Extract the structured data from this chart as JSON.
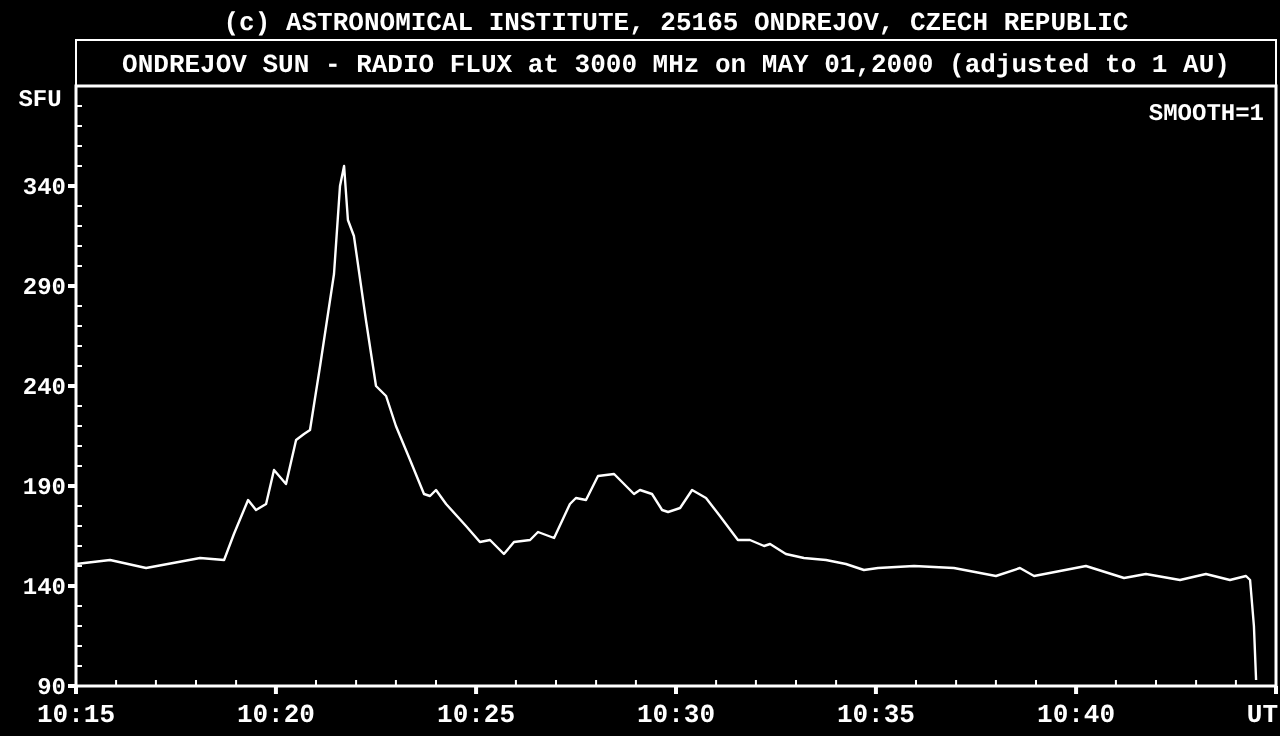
{
  "chart_data": {
    "type": "line",
    "title": "ONDREJOV SUN - RADIO FLUX at 3000 MHz on MAY 01,2000 (adjusted to 1 AU)",
    "ylabel": "SFU",
    "annotations": [
      "(c) ASTRONOMICAL INSTITUTE, 25165 ONDREJOV, CZECH REPUBLIC",
      "SMOOTH=1"
    ],
    "xlim": [
      10.25,
      10.75
    ],
    "ylim": [
      90,
      390
    ],
    "xticks": [
      {
        "value": 10.25,
        "label": "10:15"
      },
      {
        "value": 10.2667,
        "label": null
      },
      {
        "value": 10.2833,
        "label": null
      },
      {
        "value": 10.3,
        "label": null
      },
      {
        "value": 10.3167,
        "label": null
      },
      {
        "value": 10.3333,
        "label": "10:20"
      },
      {
        "value": 10.35,
        "label": null
      },
      {
        "value": 10.3667,
        "label": null
      },
      {
        "value": 10.3833,
        "label": null
      },
      {
        "value": 10.4,
        "label": null
      },
      {
        "value": 10.4167,
        "label": "10:25"
      },
      {
        "value": 10.4333,
        "label": null
      },
      {
        "value": 10.45,
        "label": null
      },
      {
        "value": 10.4667,
        "label": null
      },
      {
        "value": 10.4833,
        "label": null
      },
      {
        "value": 10.5,
        "label": "10:30"
      },
      {
        "value": 10.5167,
        "label": null
      },
      {
        "value": 10.5333,
        "label": null
      },
      {
        "value": 10.55,
        "label": null
      },
      {
        "value": 10.5667,
        "label": null
      },
      {
        "value": 10.5833,
        "label": "10:35"
      },
      {
        "value": 10.6,
        "label": null
      },
      {
        "value": 10.6167,
        "label": null
      },
      {
        "value": 10.6333,
        "label": null
      },
      {
        "value": 10.65,
        "label": null
      },
      {
        "value": 10.6667,
        "label": "10:40"
      },
      {
        "value": 10.6833,
        "label": null
      },
      {
        "value": 10.7,
        "label": null
      },
      {
        "value": 10.7167,
        "label": null
      },
      {
        "value": 10.7333,
        "label": null
      },
      {
        "value": 10.75,
        "label": "UT"
      }
    ],
    "yticks": [
      90,
      {
        "value": 100,
        "label": null
      },
      {
        "value": 110,
        "label": null
      },
      {
        "value": 120,
        "label": null
      },
      {
        "value": 130,
        "label": null
      },
      140,
      {
        "value": 150,
        "label": null
      },
      {
        "value": 160,
        "label": null
      },
      {
        "value": 170,
        "label": null
      },
      {
        "value": 180,
        "label": null
      },
      190,
      {
        "value": 200,
        "label": null
      },
      {
        "value": 210,
        "label": null
      },
      {
        "value": 220,
        "label": null
      },
      {
        "value": 230,
        "label": null
      },
      240,
      {
        "value": 250,
        "label": null
      },
      {
        "value": 260,
        "label": null
      },
      {
        "value": 270,
        "label": null
      },
      {
        "value": 280,
        "label": null
      },
      290,
      {
        "value": 300,
        "label": null
      },
      {
        "value": 310,
        "label": null
      },
      {
        "value": 320,
        "label": null
      },
      {
        "value": 330,
        "label": null
      },
      340,
      {
        "value": 350,
        "label": null
      },
      {
        "value": 360,
        "label": null
      },
      {
        "value": 370,
        "label": null
      },
      {
        "value": 380,
        "label": null
      },
      {
        "value": 390,
        "label": null
      }
    ],
    "grid": false,
    "marker": "none",
    "line_style": "solid",
    "series": [
      {
        "color": "#ffffff",
        "x": [
          10.25,
          10.2642,
          10.2792,
          10.3017,
          10.3117,
          10.3158,
          10.3217,
          10.325,
          10.3292,
          10.3325,
          10.3375,
          10.3417,
          10.345,
          10.3475,
          10.3517,
          10.3575,
          10.36,
          10.3617,
          10.3633,
          10.3658,
          10.3708,
          10.375,
          10.3792,
          10.3833,
          10.3892,
          10.395,
          10.3975,
          10.4,
          10.4042,
          10.4125,
          10.4183,
          10.4225,
          10.4283,
          10.4325,
          10.4392,
          10.4425,
          10.4492,
          10.4558,
          10.4583,
          10.4625,
          10.4675,
          10.4742,
          10.4825,
          10.485,
          10.49,
          10.4942,
          10.4967,
          10.5017,
          10.5067,
          10.5125,
          10.5183,
          10.5258,
          10.5308,
          10.5367,
          10.5392,
          10.5458,
          10.5533,
          10.5625,
          10.5708,
          10.5783,
          10.5842,
          10.5992,
          10.6158,
          10.6333,
          10.6433,
          10.6492,
          10.6708,
          10.6867,
          10.6958,
          10.71,
          10.7208,
          10.7308,
          10.7375,
          10.7392,
          10.7408,
          10.7417
        ],
        "values": [
          151,
          153,
          149,
          154,
          153,
          166,
          183,
          178,
          181,
          198,
          191,
          213,
          216,
          218,
          250,
          296,
          340,
          350,
          323,
          315,
          273,
          240,
          235,
          220,
          203,
          186,
          185,
          188,
          181,
          170,
          162,
          163,
          156,
          162,
          163,
          167,
          164,
          181,
          184,
          183,
          195,
          196,
          186,
          188,
          186,
          178,
          177,
          179,
          188,
          184,
          175,
          163,
          163,
          160,
          161,
          156,
          154,
          153,
          151,
          148,
          149,
          150,
          149,
          145,
          149,
          145,
          150,
          144,
          146,
          143,
          146,
          143,
          145,
          143,
          120,
          93
        ]
      }
    ]
  }
}
